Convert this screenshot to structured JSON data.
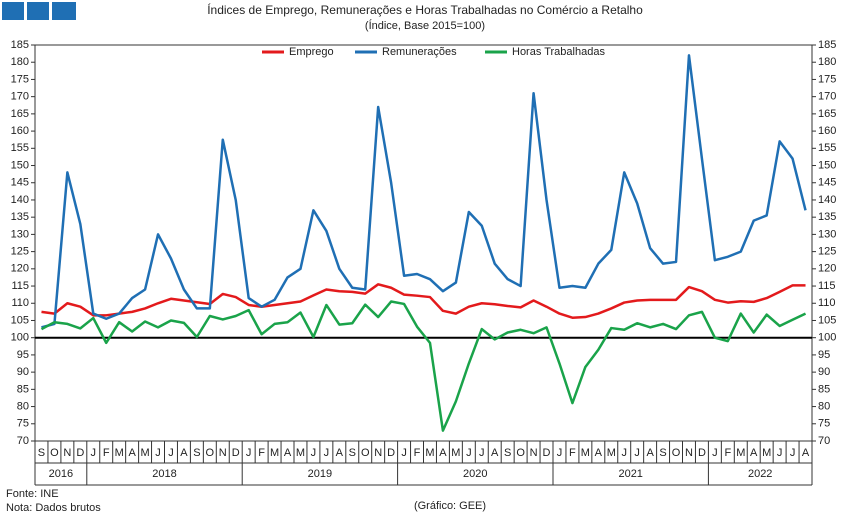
{
  "chart_data": {
    "type": "line",
    "title": "Índices de Emprego, Remunerações e Horas Trabalhadas no Comércio a Retalho",
    "subtitle": "(Índice, Base 2015=100)",
    "categories": [
      "S",
      "O",
      "N",
      "D",
      "J",
      "F",
      "M",
      "A",
      "M",
      "J",
      "J",
      "A",
      "S",
      "O",
      "N",
      "D",
      "J",
      "F",
      "M",
      "A",
      "M",
      "J",
      "J",
      "A",
      "S",
      "O",
      "N",
      "D",
      "J",
      "F",
      "M",
      "A",
      "M",
      "J",
      "J",
      "A",
      "S",
      "O",
      "N",
      "D",
      "J",
      "F",
      "M",
      "A",
      "M",
      "J",
      "J",
      "A",
      "S",
      "O",
      "N",
      "D",
      "J",
      "F",
      "M",
      "A",
      "M",
      "J",
      "J",
      "A"
    ],
    "year_labels": [
      "2016",
      "2018",
      "2019",
      "2020",
      "2021",
      "2022"
    ],
    "series": [
      {
        "name": "Emprego",
        "color": "#e31a1c",
        "values": [
          107.5,
          107,
          110,
          109,
          106.5,
          106.5,
          107,
          107.5,
          108.5,
          110,
          111.3,
          110.8,
          110.3,
          109.8,
          112.7,
          111.8,
          109.5,
          109,
          109.5,
          110,
          110.5,
          112.3,
          114,
          113.5,
          113.3,
          112.8,
          115.5,
          114.5,
          112.5,
          112.2,
          111.8,
          107.8,
          107,
          109,
          110,
          109.7,
          109.2,
          108.8,
          110.8,
          109,
          107,
          105.8,
          106,
          107,
          108.5,
          110.2,
          110.8,
          111,
          111,
          111,
          114.7,
          113.5,
          111,
          110.2,
          110.6,
          110.4,
          111.5,
          113.3,
          115.2,
          115.2
        ]
      },
      {
        "name": "Remunerações",
        "color": "#1f6fb4",
        "values": [
          103,
          104,
          148,
          133,
          107,
          105.5,
          107,
          111.5,
          114,
          130,
          123,
          114,
          108.5,
          108.5,
          157.5,
          140,
          111.5,
          109,
          111,
          117.5,
          120,
          137,
          131,
          120,
          114.5,
          114,
          167,
          145,
          118,
          118.5,
          117,
          113.5,
          116,
          136.5,
          132.5,
          121.5,
          117,
          115,
          171,
          140,
          114.5,
          115,
          114.5,
          121.5,
          125.5,
          148,
          139,
          126,
          121.5,
          122,
          182,
          152,
          122.5,
          123.5,
          125,
          134,
          135.5,
          157,
          152,
          137
        ]
      },
      {
        "name": "Horas Trabalhadas",
        "color": "#1aa34a",
        "values": [
          102.5,
          104.5,
          104,
          102.7,
          105.7,
          98.5,
          104.5,
          101.8,
          104.7,
          103,
          105,
          104.3,
          100.2,
          106.3,
          105.3,
          106.3,
          108,
          101,
          104,
          104.5,
          107.3,
          100.2,
          109.5,
          103.8,
          104.2,
          109.6,
          106,
          110.5,
          109.8,
          103.2,
          98.5,
          73,
          81.5,
          92.5,
          102.5,
          99.5,
          101.5,
          102.3,
          101.3,
          103,
          92.5,
          81,
          91.5,
          96.5,
          102.8,
          102.3,
          104.2,
          103,
          104,
          102.5,
          106.5,
          107.5,
          100,
          99,
          107,
          101.5,
          106.7,
          103.4,
          105.2,
          107
        ]
      }
    ],
    "reference_line": 100,
    "ylim": [
      70,
      185
    ],
    "yticks": [
      70,
      75,
      80,
      85,
      90,
      95,
      100,
      105,
      110,
      115,
      120,
      125,
      130,
      135,
      140,
      145,
      150,
      155,
      160,
      165,
      170,
      175,
      180,
      185
    ],
    "y2lim": [
      70,
      185
    ],
    "y2ticks": [
      70,
      75,
      80,
      85,
      90,
      95,
      100,
      105,
      110,
      115,
      120,
      125,
      130,
      135,
      140,
      145,
      150,
      155,
      160,
      165,
      170,
      175,
      180,
      185
    ],
    "legend": "top",
    "source": "Fonte: INE",
    "note": "Nota: Dados brutos",
    "credit": "(Gráfico: GEE)"
  }
}
